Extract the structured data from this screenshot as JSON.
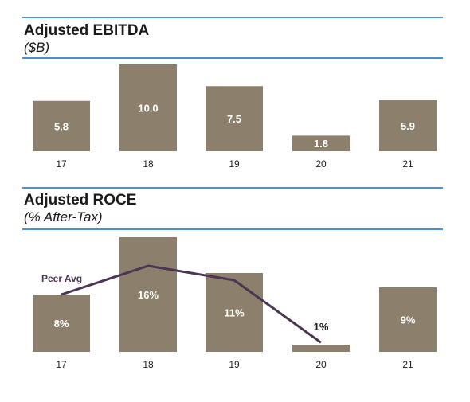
{
  "colors": {
    "bar": "#8c7f6b",
    "rule": "#4a90d9",
    "line": "#4a3552",
    "bar_label": "#ffffff"
  },
  "chart_data": [
    {
      "type": "bar",
      "title": "Adjusted EBITDA",
      "subtitle": "($B)",
      "categories": [
        "17",
        "18",
        "19",
        "20",
        "21"
      ],
      "values": [
        5.8,
        10.0,
        7.5,
        1.8,
        5.9
      ],
      "data_labels": [
        "5.8",
        "10.0",
        "7.5",
        "1.8",
        "5.9"
      ],
      "ylim": [
        0,
        10.0
      ],
      "grid": false
    },
    {
      "type": "bar",
      "title": "Adjusted ROCE",
      "subtitle": "(% After-Tax)",
      "categories": [
        "17",
        "18",
        "19",
        "20",
        "21"
      ],
      "values": [
        8,
        16,
        11,
        1,
        9
      ],
      "data_labels": [
        "8%",
        "16%",
        "11%",
        "1%",
        "9%"
      ],
      "ylim": [
        0,
        16
      ],
      "grid": false,
      "line_series": {
        "name": "Peer Avg",
        "categories": [
          "17",
          "18",
          "19",
          "20"
        ],
        "values": [
          8,
          12,
          10,
          1.3
        ]
      }
    }
  ]
}
